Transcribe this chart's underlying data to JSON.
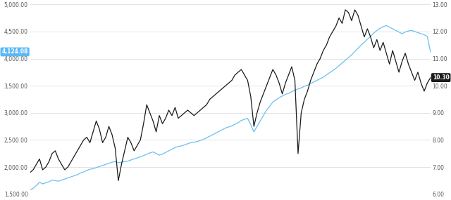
{
  "sp500_label": "4,124.08",
  "amcor_label": "10.30",
  "left_ylim": [
    1500,
    5000
  ],
  "right_ylim": [
    6.0,
    13.0
  ],
  "left_yticks": [
    1500,
    2000,
    2500,
    3000,
    3500,
    4000,
    4500,
    5000
  ],
  "right_yticks": [
    6.0,
    7.0,
    8.0,
    9.0,
    10.0,
    11.0,
    12.0,
    13.0
  ],
  "sp500_color": "#69c0f0",
  "amcor_color": "#1a1a1a",
  "background_color": "#ffffff",
  "grid_color": "#d8d8d8",
  "label_sp500_bg": "#5bb8f5",
  "label_amcor_bg": "#1a1a1a",
  "sp500_data": [
    1580,
    1610,
    1660,
    1720,
    1690,
    1710,
    1730,
    1760,
    1750,
    1740,
    1760,
    1780,
    1800,
    1820,
    1840,
    1860,
    1890,
    1910,
    1940,
    1960,
    1970,
    1990,
    2010,
    2030,
    2050,
    2070,
    2090,
    2100,
    2080,
    2090,
    2100,
    2110,
    2130,
    2150,
    2170,
    2190,
    2210,
    2240,
    2260,
    2280,
    2250,
    2220,
    2240,
    2270,
    2300,
    2330,
    2360,
    2380,
    2390,
    2410,
    2430,
    2450,
    2460,
    2470,
    2490,
    2510,
    2540,
    2570,
    2600,
    2630,
    2660,
    2690,
    2720,
    2740,
    2760,
    2790,
    2820,
    2860,
    2880,
    2900,
    2780,
    2650,
    2750,
    2850,
    2950,
    3050,
    3120,
    3200,
    3240,
    3280,
    3310,
    3340,
    3360,
    3390,
    3420,
    3440,
    3460,
    3490,
    3510,
    3540,
    3570,
    3600,
    3630,
    3660,
    3700,
    3740,
    3780,
    3820,
    3870,
    3920,
    3970,
    4020,
    4070,
    4130,
    4190,
    4250,
    4300,
    4360,
    4410,
    4470,
    4520,
    4560,
    4590,
    4610,
    4580,
    4550,
    4520,
    4490,
    4460,
    4490,
    4510,
    4520,
    4500,
    4480,
    4460,
    4440,
    4410,
    4124
  ],
  "amcor_data": [
    6.8,
    6.9,
    7.1,
    7.3,
    6.9,
    7.0,
    7.2,
    7.5,
    7.6,
    7.3,
    7.1,
    6.9,
    7.0,
    7.2,
    7.4,
    7.6,
    7.8,
    8.0,
    8.1,
    7.9,
    8.3,
    8.7,
    8.4,
    7.9,
    8.1,
    8.5,
    8.2,
    7.7,
    6.5,
    7.1,
    7.6,
    8.1,
    7.9,
    7.6,
    7.8,
    8.0,
    8.6,
    9.3,
    9.0,
    8.7,
    8.3,
    8.9,
    8.6,
    8.8,
    9.1,
    8.9,
    9.2,
    8.8,
    8.9,
    9.0,
    9.1,
    9.0,
    8.9,
    9.0,
    9.1,
    9.2,
    9.3,
    9.5,
    9.6,
    9.7,
    9.8,
    9.9,
    10.0,
    10.1,
    10.2,
    10.4,
    10.5,
    10.6,
    10.4,
    10.2,
    9.6,
    8.5,
    9.0,
    9.4,
    9.7,
    10.0,
    10.3,
    10.6,
    10.4,
    10.1,
    9.7,
    10.1,
    10.4,
    10.7,
    10.2,
    7.5,
    9.0,
    9.5,
    9.8,
    10.2,
    10.5,
    10.8,
    11.0,
    11.3,
    11.5,
    11.8,
    12.0,
    12.2,
    12.5,
    12.3,
    12.8,
    12.7,
    12.4,
    12.8,
    12.6,
    12.2,
    11.8,
    12.1,
    11.8,
    11.4,
    11.7,
    11.3,
    11.6,
    11.2,
    10.8,
    11.3,
    10.9,
    10.5,
    10.9,
    11.2,
    10.8,
    10.5,
    10.2,
    10.5,
    10.1,
    9.8,
    10.1,
    10.3
  ]
}
